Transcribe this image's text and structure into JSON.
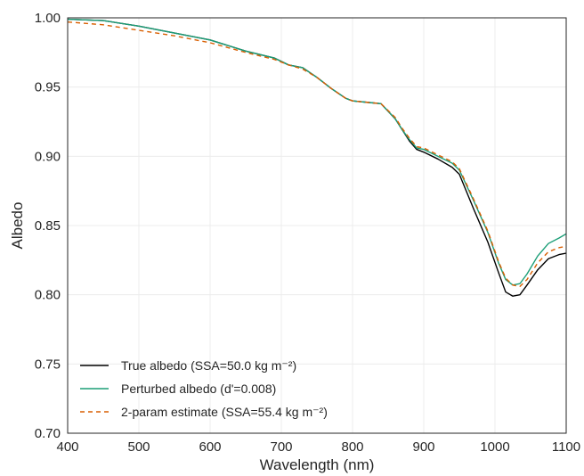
{
  "chart_data": {
    "type": "line",
    "xlabel": "Wavelength (nm)",
    "ylabel": "Albedo",
    "xlim": [
      400,
      1100
    ],
    "ylim": [
      0.7,
      1.0
    ],
    "x_ticks": [
      "400",
      "500",
      "600",
      "700",
      "800",
      "900",
      "1000",
      "1100"
    ],
    "y_ticks": [
      "0.70",
      "0.75",
      "0.80",
      "0.85",
      "0.90",
      "0.95",
      "1.00"
    ],
    "grid": true,
    "legend_position": "bottom-left",
    "series": [
      {
        "name": "True albedo (SSA=50.0 kg m⁻²)",
        "color": "#000000",
        "style": "solid",
        "x": [
          400,
          450,
          500,
          550,
          600,
          650,
          690,
          710,
          730,
          750,
          770,
          790,
          800,
          820,
          840,
          860,
          870,
          880,
          890,
          900,
          920,
          940,
          950,
          970,
          990,
          1005,
          1015,
          1025,
          1035,
          1045,
          1060,
          1075,
          1090,
          1100
        ],
        "y": [
          0.999,
          0.998,
          0.994,
          0.989,
          0.984,
          0.976,
          0.971,
          0.966,
          0.964,
          0.957,
          0.949,
          0.942,
          0.94,
          0.939,
          0.938,
          0.927,
          0.919,
          0.911,
          0.905,
          0.903,
          0.898,
          0.892,
          0.887,
          0.862,
          0.838,
          0.816,
          0.802,
          0.799,
          0.8,
          0.807,
          0.818,
          0.826,
          0.829,
          0.83
        ]
      },
      {
        "name": "Perturbed albedo (d'=0.008)",
        "color": "#1b9e77",
        "style": "solid",
        "x": [
          400,
          450,
          500,
          550,
          600,
          650,
          690,
          710,
          730,
          750,
          770,
          790,
          800,
          820,
          840,
          860,
          870,
          880,
          890,
          900,
          920,
          940,
          950,
          970,
          990,
          1005,
          1015,
          1025,
          1035,
          1045,
          1060,
          1075,
          1090,
          1100
        ],
        "y": [
          0.999,
          0.998,
          0.994,
          0.989,
          0.984,
          0.976,
          0.971,
          0.966,
          0.964,
          0.957,
          0.949,
          0.942,
          0.94,
          0.939,
          0.938,
          0.927,
          0.919,
          0.912,
          0.906,
          0.905,
          0.9,
          0.895,
          0.89,
          0.868,
          0.845,
          0.823,
          0.811,
          0.807,
          0.808,
          0.815,
          0.828,
          0.837,
          0.841,
          0.844
        ]
      },
      {
        "name": "2-param estimate (SSA=55.4 kg m⁻²)",
        "color": "#d95f02",
        "style": "dashed",
        "x": [
          400,
          450,
          500,
          550,
          600,
          650,
          690,
          710,
          730,
          750,
          770,
          790,
          800,
          820,
          840,
          860,
          870,
          880,
          890,
          900,
          920,
          940,
          950,
          970,
          990,
          1005,
          1015,
          1025,
          1035,
          1045,
          1060,
          1075,
          1090,
          1100
        ],
        "y": [
          0.997,
          0.995,
          0.991,
          0.987,
          0.982,
          0.975,
          0.97,
          0.966,
          0.963,
          0.957,
          0.949,
          0.942,
          0.94,
          0.939,
          0.938,
          0.928,
          0.92,
          0.913,
          0.907,
          0.906,
          0.901,
          0.896,
          0.891,
          0.869,
          0.846,
          0.824,
          0.812,
          0.807,
          0.806,
          0.811,
          0.823,
          0.831,
          0.834,
          0.835
        ]
      }
    ]
  }
}
